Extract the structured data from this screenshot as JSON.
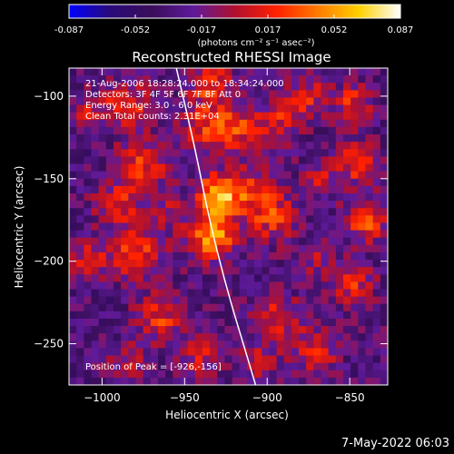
{
  "chart_data": {
    "type": "heatmap",
    "title": "Reconstructed RHESSI Image",
    "xlabel": "Heliocentric X (arcsec)",
    "ylabel": "Heliocentric Y (arcsec)",
    "xlim": [
      -1020,
      -827
    ],
    "ylim": [
      -275,
      -83
    ],
    "x_ticks": [
      -1000,
      -950,
      -900,
      -850
    ],
    "y_ticks": [
      -100,
      -150,
      -200,
      -250
    ],
    "colorbar": {
      "min": -0.087,
      "max": 0.087,
      "ticks": [
        "-0.087",
        "-0.052",
        "-0.017",
        "0.017",
        "0.052",
        "0.087"
      ],
      "units_label": "(photons cm⁻² s⁻¹ asec⁻²)",
      "colormap": [
        "#0000ff",
        "#2a0a7a",
        "#3a0e5a",
        "#5e1a9a",
        "#b01030",
        "#ff2000",
        "#ff7a00",
        "#ffd000",
        "#ffffff"
      ]
    },
    "annotations": [
      "21-Aug-2006 18:28:24.000 to 18:34:24.000",
      "Detectors: 3F 4F 5F 6F 7F 8F Att 0",
      "Energy Range: 3.0 - 6.0 keV",
      "Clean    Total counts: 2.31E+04"
    ],
    "peak_label": "Position of Peak = [-926,-156]",
    "peak": [
      -926,
      -156
    ],
    "limb_curve": [
      [
        -955,
        -83
      ],
      [
        -944,
        -130
      ],
      [
        -935,
        -175
      ],
      [
        -925,
        -215
      ],
      [
        -913,
        -255
      ],
      [
        -907,
        -275
      ]
    ],
    "blobs": [
      {
        "x": -930,
        "y": -160,
        "sigma": 9,
        "amp": 0.09
      },
      {
        "x": -933,
        "y": -185,
        "sigma": 10,
        "amp": 0.082
      },
      {
        "x": -938,
        "y": -118,
        "sigma": 10,
        "amp": 0.045
      },
      {
        "x": -935,
        "y": -92,
        "sigma": 9,
        "amp": 0.055
      },
      {
        "x": -918,
        "y": -120,
        "sigma": 10,
        "amp": 0.05
      },
      {
        "x": -908,
        "y": -160,
        "sigma": 11,
        "amp": 0.045
      },
      {
        "x": -893,
        "y": -115,
        "sigma": 9,
        "amp": 0.04
      },
      {
        "x": -895,
        "y": -175,
        "sigma": 10,
        "amp": 0.042
      },
      {
        "x": -985,
        "y": -105,
        "sigma": 10,
        "amp": 0.05
      },
      {
        "x": -975,
        "y": -140,
        "sigma": 10,
        "amp": 0.052
      },
      {
        "x": -990,
        "y": -165,
        "sigma": 10,
        "amp": 0.045
      },
      {
        "x": -978,
        "y": -195,
        "sigma": 11,
        "amp": 0.055
      },
      {
        "x": -1008,
        "y": -200,
        "sigma": 8,
        "amp": 0.042
      },
      {
        "x": -1010,
        "y": -110,
        "sigma": 8,
        "amp": 0.03
      },
      {
        "x": -958,
        "y": -170,
        "sigma": 8,
        "amp": 0.025
      },
      {
        "x": -965,
        "y": -235,
        "sigma": 10,
        "amp": 0.048
      },
      {
        "x": -940,
        "y": -258,
        "sigma": 9,
        "amp": 0.038
      },
      {
        "x": -985,
        "y": -262,
        "sigma": 8,
        "amp": 0.03
      },
      {
        "x": -893,
        "y": -235,
        "sigma": 10,
        "amp": 0.045
      },
      {
        "x": -870,
        "y": -255,
        "sigma": 9,
        "amp": 0.04
      },
      {
        "x": -905,
        "y": -262,
        "sigma": 8,
        "amp": 0.035
      },
      {
        "x": -875,
        "y": -100,
        "sigma": 9,
        "amp": 0.04
      },
      {
        "x": -848,
        "y": -105,
        "sigma": 8,
        "amp": 0.048
      },
      {
        "x": -845,
        "y": -140,
        "sigma": 9,
        "amp": 0.052
      },
      {
        "x": -840,
        "y": -175,
        "sigma": 9,
        "amp": 0.058
      },
      {
        "x": -848,
        "y": -215,
        "sigma": 9,
        "amp": 0.045
      },
      {
        "x": -868,
        "y": -150,
        "sigma": 8,
        "amp": 0.03
      },
      {
        "x": -870,
        "y": -200,
        "sigma": 7,
        "amp": 0.025
      }
    ],
    "background": -0.03
  },
  "footer_date": "7-May-2022 06:03"
}
